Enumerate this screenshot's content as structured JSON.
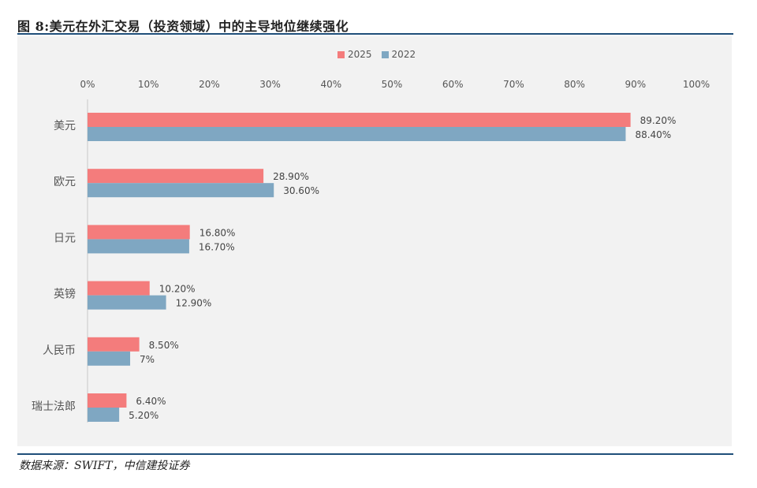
{
  "header": {
    "title": "图 8:美元在外汇交易（投资领域）中的主导地位继续强化"
  },
  "footer": {
    "source": "数据来源：SWIFT，中信建投证券"
  },
  "colors": {
    "s2025": "#f47c7c",
    "s2022": "#7fa7c2",
    "rule": "#1f4e79"
  },
  "chart_data": {
    "type": "bar",
    "orientation": "horizontal",
    "categories": [
      "美元",
      "欧元",
      "日元",
      "英镑",
      "人民币",
      "瑞士法郎"
    ],
    "series": [
      {
        "name": "2025",
        "values": [
          89.2,
          28.9,
          16.8,
          10.2,
          8.5,
          6.4
        ],
        "labels": [
          "89.20%",
          "28.90%",
          "16.80%",
          "10.20%",
          "8.50%",
          "6.40%"
        ]
      },
      {
        "name": "2022",
        "values": [
          88.4,
          30.6,
          16.7,
          12.9,
          7.0,
          5.2
        ],
        "labels": [
          "88.40%",
          "30.60%",
          "16.70%",
          "12.90%",
          "7%",
          "5.20%"
        ]
      }
    ],
    "xlim": [
      0,
      100
    ],
    "xticks": [
      "0%",
      "10%",
      "20%",
      "30%",
      "40%",
      "50%",
      "60%",
      "70%",
      "80%",
      "90%",
      "100%"
    ],
    "xaxis_position": "top",
    "legend_position": "top-center",
    "grid": false
  }
}
